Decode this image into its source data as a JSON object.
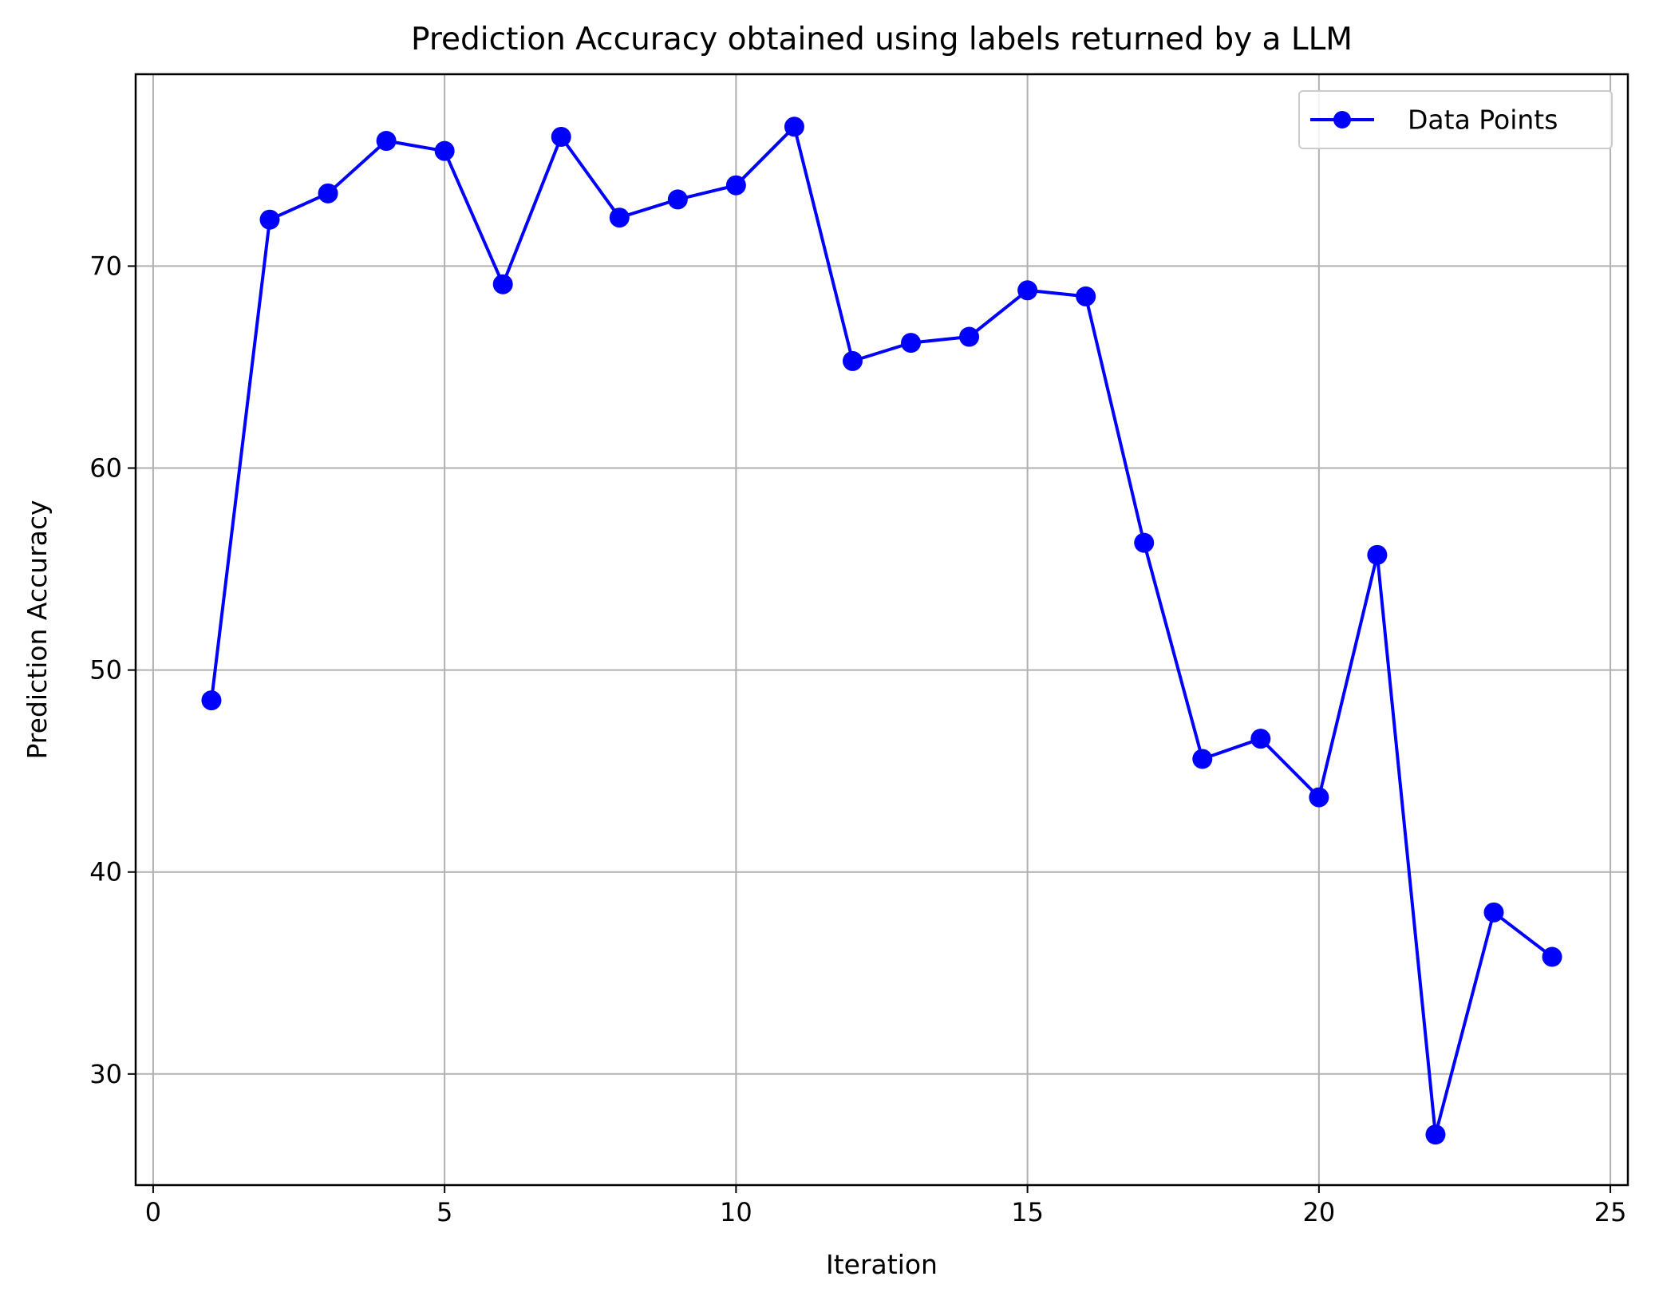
{
  "chart_data": {
    "type": "line",
    "title": "Prediction Accuracy obtained using labels returned by a LLM",
    "xlabel": "Iteration",
    "ylabel": "Prediction Accuracy",
    "xlim": [
      -0.3,
      25.3
    ],
    "ylim": [
      24.5,
      79.5
    ],
    "xticks": [
      0,
      5,
      10,
      15,
      20,
      25
    ],
    "yticks": [
      30,
      40,
      50,
      60,
      70
    ],
    "grid": true,
    "legend_position": "top-right",
    "series": [
      {
        "name": "Data Points",
        "color": "#0000ff",
        "marker": "circle",
        "x": [
          1,
          2,
          3,
          4,
          5,
          6,
          7,
          8,
          9,
          10,
          11,
          12,
          13,
          14,
          15,
          16,
          17,
          18,
          19,
          20,
          21,
          22,
          23,
          24
        ],
        "y": [
          48.5,
          72.3,
          73.6,
          76.2,
          75.7,
          69.1,
          76.4,
          72.4,
          73.3,
          74.0,
          76.9,
          65.3,
          66.2,
          66.5,
          68.8,
          68.5,
          56.3,
          45.6,
          46.6,
          43.7,
          55.7,
          27.0,
          38.0,
          35.8
        ]
      }
    ]
  }
}
